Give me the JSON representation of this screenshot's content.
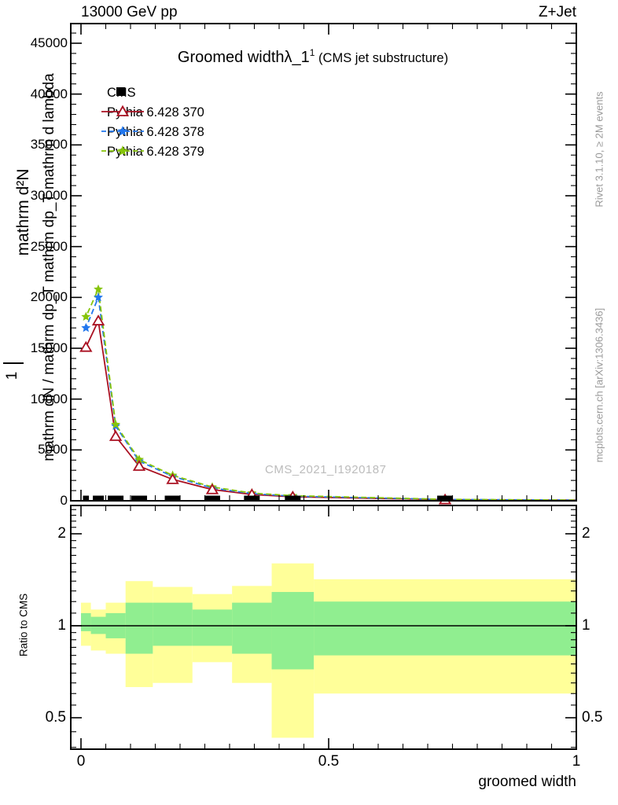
{
  "header": {
    "left": "13000 GeV pp",
    "right": "Z+Jet"
  },
  "title": {
    "main": "Groomed width",
    "lambda": "λ_1",
    "sup": "1",
    "paren": "(CMS jet substructure)"
  },
  "legend": [
    {
      "label": "CMS",
      "marker": "black-filled-square"
    },
    {
      "label": "Pythia 6.428 370",
      "marker": "red-solid-line-open-triangle"
    },
    {
      "label": "Pythia 6.428 378",
      "marker": "blue-dashed-line-star"
    },
    {
      "label": "Pythia 6.428 379",
      "marker": "green-dashed-line-star"
    }
  ],
  "watermark": "CMS_2021_I1920187",
  "side_notes": {
    "top": "Rivet 3.1.10, ≥ 2M events",
    "bottom": "mcplots.cern.ch [arXiv:1306.3436]"
  },
  "axes": {
    "y_label_outer": "mathrm d²N",
    "y_label_one": "1",
    "y_label_inner": "mathrm dN / mathrm dp_T mathrm dp_T mathrm d lambda",
    "x_label": "groomed width",
    "ratio_label": "Ratio to CMS",
    "y_tick_labels": [
      "45000",
      "40000",
      "35000",
      "30000",
      "25000",
      "20000",
      "15000",
      "10000",
      "5000",
      "0"
    ],
    "x_tick_labels": [
      "0",
      "0.5",
      "1"
    ],
    "ratio_tick_labels": [
      "2",
      "1",
      "0.5"
    ]
  },
  "colors": {
    "red": "#aa1122",
    "blue": "#2277ee",
    "green": "#86c40a",
    "band_yellow": "#ffff99",
    "band_green": "#90ee90",
    "gray_text": "#9a9a9a",
    "watermark": "#bcbcbc"
  },
  "chart_data": {
    "type": "line",
    "title": "Groomed width λ_1^1 (CMS jet substructure)",
    "xlabel": "groomed width",
    "ylabel": "mathrm d²N / mathrm dp_T mathrm d lambda (mangled TeX as shown)",
    "xlim": [
      0,
      1
    ],
    "ylim_main": [
      0,
      46900
    ],
    "ylim_ratio_log": [
      0.394,
      2.47
    ],
    "x_minor_tick_step": 0.05,
    "y_major_tick_step": 5000,
    "y_minor_tick_step": 1000,
    "bin_edges": [
      0,
      0.02,
      0.05,
      0.09,
      0.145,
      0.225,
      0.305,
      0.385,
      0.47,
      1.0
    ],
    "x": [
      0.01,
      0.035,
      0.07,
      0.1175,
      0.185,
      0.265,
      0.345,
      0.4275,
      0.735
    ],
    "series": [
      {
        "name": "Pythia 6.428 370",
        "color": "#aa1122",
        "style": "solid",
        "marker": "open-triangle",
        "values": [
          15100,
          17700,
          6340,
          3400,
          2100,
          1100,
          620,
          390,
          110
        ]
      },
      {
        "name": "Pythia 6.428 378",
        "color": "#2277ee",
        "style": "dashed",
        "marker": "star",
        "values": [
          17000,
          20000,
          7350,
          3900,
          2400,
          1250,
          700,
          450,
          130
        ]
      },
      {
        "name": "Pythia 6.428 379",
        "color": "#86c40a",
        "style": "dashed",
        "marker": "star",
        "values": [
          18100,
          20800,
          7500,
          4050,
          2500,
          1350,
          760,
          500,
          140
        ]
      }
    ],
    "cms_data": {
      "name": "CMS",
      "marker": "filled-square",
      "values": [
        0,
        0,
        0,
        0,
        0,
        0,
        0,
        0,
        0
      ]
    },
    "ratio_panel": {
      "ylabel": "Ratio to CMS",
      "scale": "log",
      "reference_line": 1,
      "tick_labels": [
        2,
        1,
        0.5
      ],
      "bands_by_bin": {
        "bin_edges": [
          0,
          0.02,
          0.05,
          0.09,
          0.145,
          0.225,
          0.305,
          0.385,
          0.47,
          1.0
        ],
        "yellow_hi": [
          1.19,
          1.13,
          1.19,
          1.4,
          1.34,
          1.27,
          1.35,
          1.6,
          1.42
        ],
        "green_hi": [
          1.1,
          1.07,
          1.1,
          1.19,
          1.19,
          1.13,
          1.19,
          1.29,
          1.2
        ],
        "green_lo": [
          0.96,
          0.94,
          0.91,
          0.81,
          0.86,
          0.86,
          0.81,
          0.72,
          0.8
        ],
        "yellow_lo": [
          0.86,
          0.83,
          0.81,
          0.63,
          0.65,
          0.76,
          0.65,
          0.43,
          0.6
        ]
      }
    }
  }
}
